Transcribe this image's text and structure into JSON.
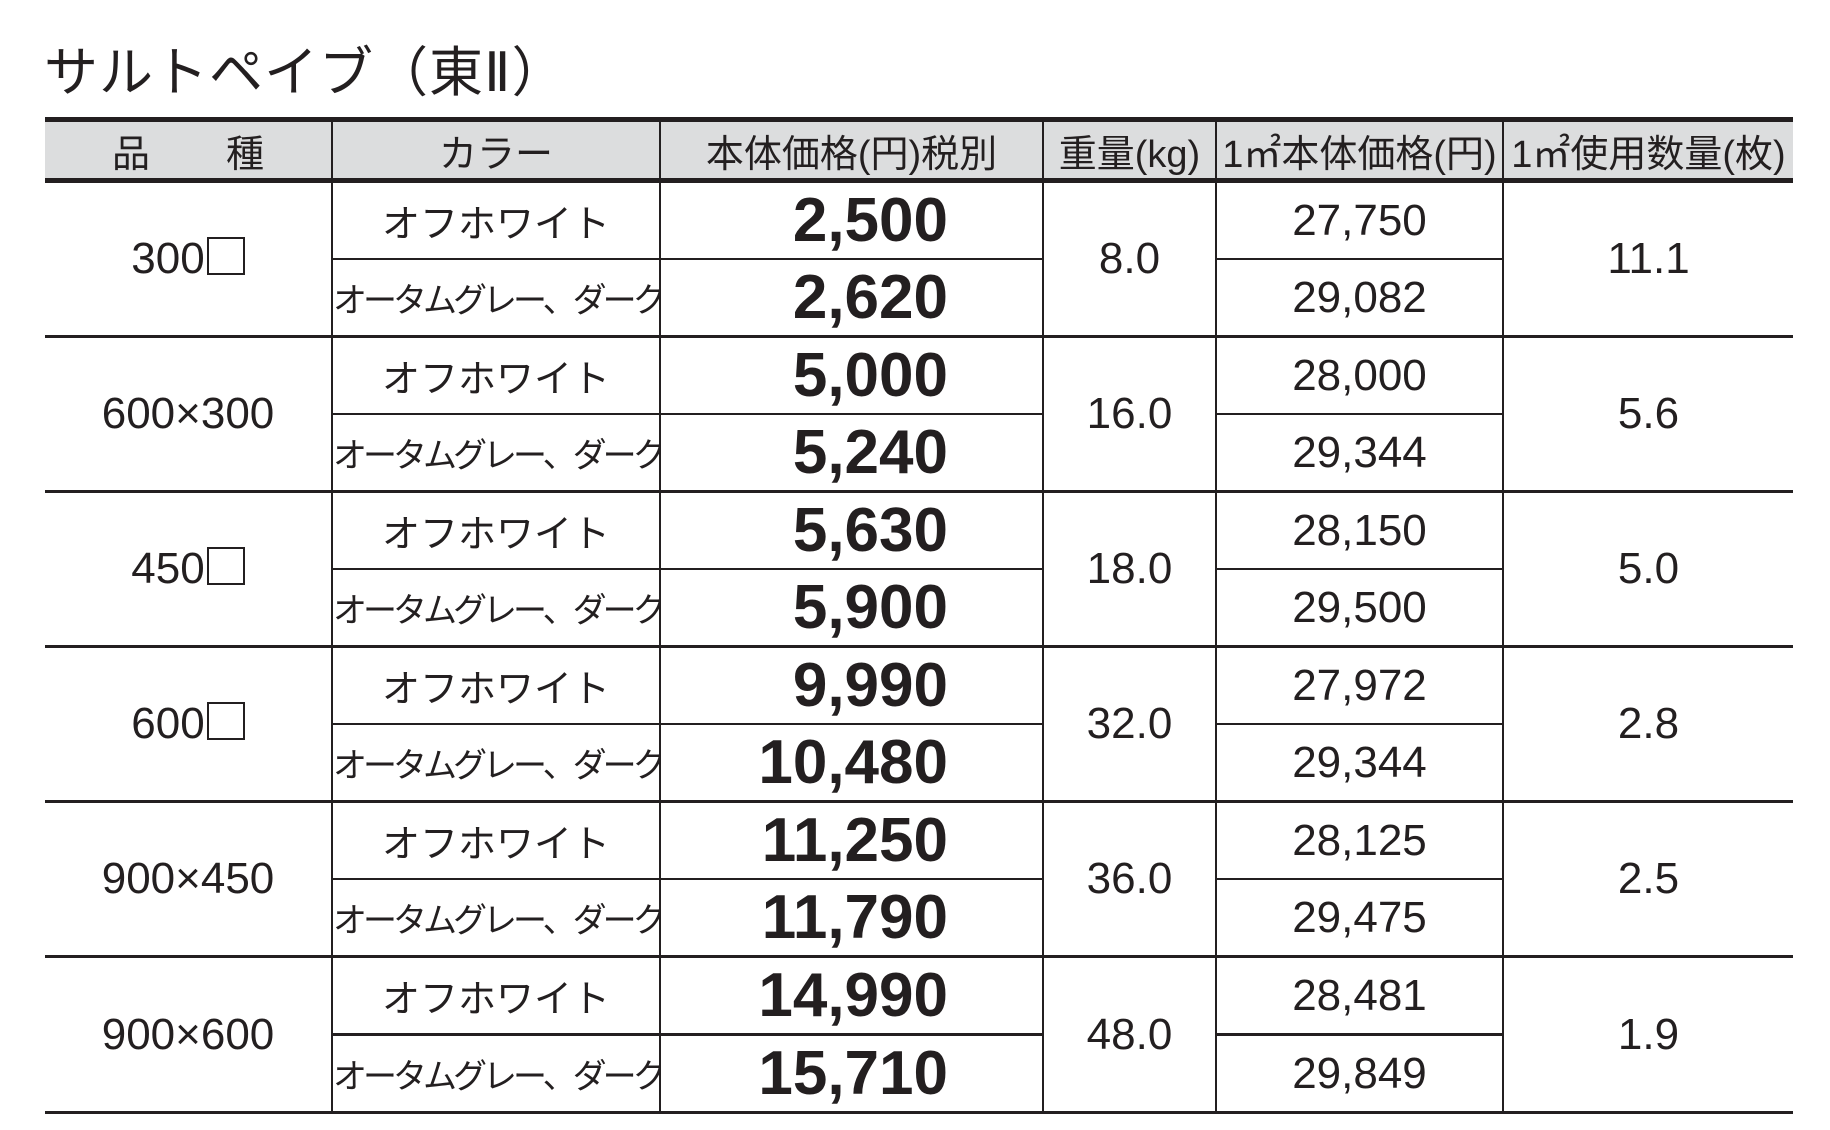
{
  "title": "サルトペイブ（東Ⅱ）",
  "headers": [
    "品　　種",
    "カラー",
    "本体価格(円)税別",
    "重量(kg)",
    "1㎡本体価格(円)",
    "1㎡使用数量(枚)"
  ],
  "rows": [
    {
      "kind": "300□",
      "weight": "8.0",
      "qty": "11.1",
      "variants": [
        {
          "color": "オフホワイト",
          "price": "2,500",
          "sqm_price": "27,750"
        },
        {
          "color": "オータムグレー、ダークグレー",
          "price": "2,620",
          "sqm_price": "29,082"
        }
      ]
    },
    {
      "kind": "600×300",
      "weight": "16.0",
      "qty": "5.6",
      "variants": [
        {
          "color": "オフホワイト",
          "price": "5,000",
          "sqm_price": "28,000"
        },
        {
          "color": "オータムグレー、ダークグレー",
          "price": "5,240",
          "sqm_price": "29,344"
        }
      ]
    },
    {
      "kind": "450□",
      "weight": "18.0",
      "qty": "5.0",
      "variants": [
        {
          "color": "オフホワイト",
          "price": "5,630",
          "sqm_price": "28,150"
        },
        {
          "color": "オータムグレー、ダークグレー",
          "price": "5,900",
          "sqm_price": "29,500"
        }
      ]
    },
    {
      "kind": "600□",
      "weight": "32.0",
      "qty": "2.8",
      "variants": [
        {
          "color": "オフホワイト",
          "price": "9,990",
          "sqm_price": "27,972"
        },
        {
          "color": "オータムグレー、ダークグレー",
          "price": "10,480",
          "sqm_price": "29,344"
        }
      ]
    },
    {
      "kind": "900×450",
      "weight": "36.0",
      "qty": "2.5",
      "variants": [
        {
          "color": "オフホワイト",
          "price": "11,250",
          "sqm_price": "28,125"
        },
        {
          "color": "オータムグレー、ダークグレー",
          "price": "11,790",
          "sqm_price": "29,475"
        }
      ]
    },
    {
      "kind": "900×600",
      "weight": "48.0",
      "qty": "1.9",
      "variants": [
        {
          "color": "オフホワイト",
          "price": "14,990",
          "sqm_price": "28,481"
        },
        {
          "color": "オータムグレー、ダークグレー",
          "price": "15,710",
          "sqm_price": "29,849"
        }
      ]
    }
  ]
}
